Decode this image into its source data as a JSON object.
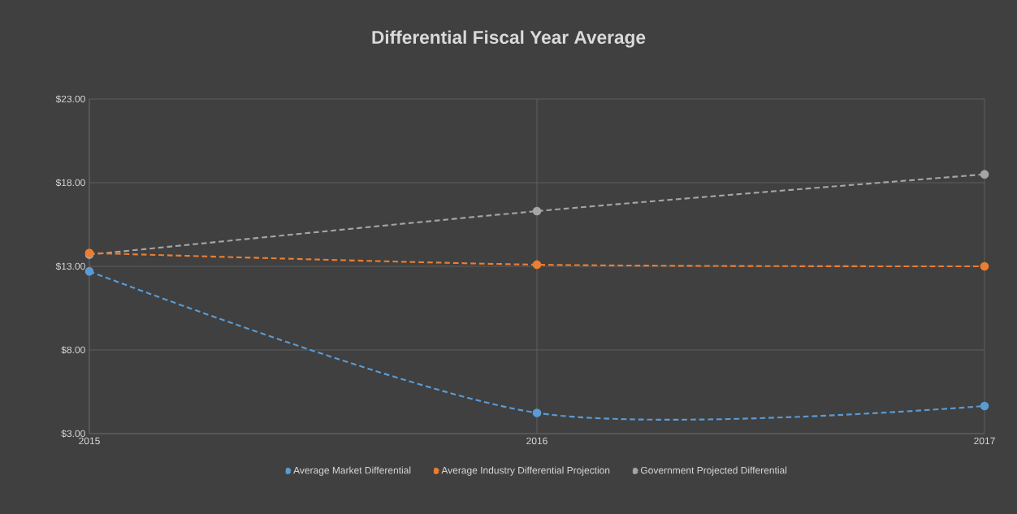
{
  "chart_data": {
    "type": "line",
    "title": "Differential Fiscal Year Average",
    "x": [
      2015,
      2016,
      2017
    ],
    "series": [
      {
        "name": "Average Market Differential",
        "color": "#5b9bd5",
        "values": [
          12.7,
          4.24,
          4.65
        ]
      },
      {
        "name": "Average Industry Differential Projection",
        "color": "#ed7d31",
        "values": [
          13.8,
          13.1,
          13.0
        ]
      },
      {
        "name": "Government Projected Differential",
        "color": "#a5a5a5",
        "values": [
          13.7,
          16.3,
          18.5
        ]
      }
    ],
    "xlim": [
      2015,
      2017
    ],
    "xticks": [
      2015,
      2016,
      2017
    ],
    "ylim": [
      3,
      23
    ],
    "yticks": [
      {
        "value": 3,
        "label": "$3.00"
      },
      {
        "value": 8,
        "label": "$8.00"
      },
      {
        "value": 13,
        "label": "$13.00"
      },
      {
        "value": 18,
        "label": "$18.00"
      },
      {
        "value": 23,
        "label": "$23.00"
      }
    ],
    "grid": true,
    "legend": "bottom",
    "marker": "circle",
    "line_style": "dashed"
  }
}
